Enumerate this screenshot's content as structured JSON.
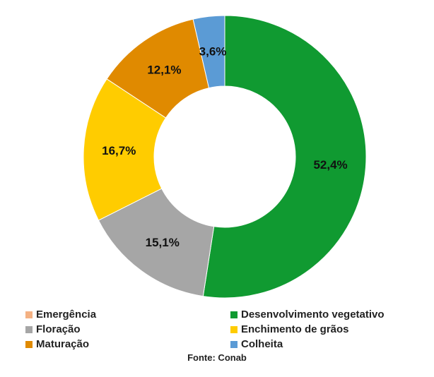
{
  "chart_data": {
    "type": "pie",
    "donut": true,
    "categories": [
      "Emergência",
      "Desenvolvimento vegetativo",
      "Floração",
      "Enchimento de grãos",
      "Maturação",
      "Colheita"
    ],
    "values": [
      0.0,
      52.4,
      15.1,
      16.7,
      12.1,
      3.6
    ],
    "value_labels": [
      "",
      "52,4%",
      "15,1%",
      "16,7%",
      "12,1%",
      "3,6%"
    ],
    "colors": [
      "#f4b183",
      "#109a31",
      "#a6a6a6",
      "#ffcc00",
      "#e08a00",
      "#5b9bd5"
    ],
    "legend_position": "bottom",
    "source": "Fonte: Conab"
  }
}
